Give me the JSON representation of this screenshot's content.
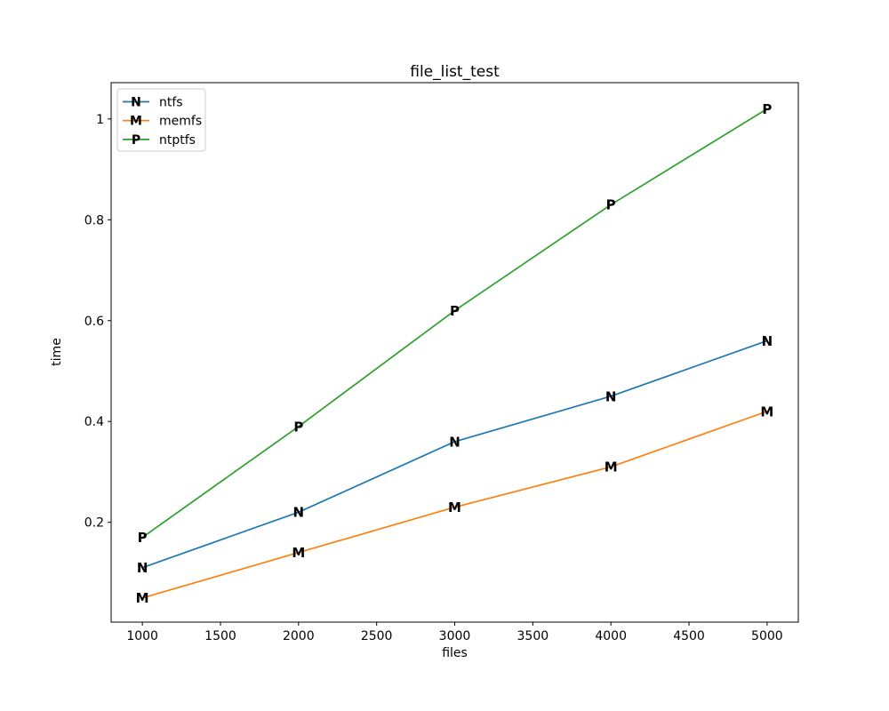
{
  "chart_data": {
    "type": "line",
    "title": "file_list_test",
    "xlabel": "files",
    "ylabel": "time",
    "x": [
      1000,
      2000,
      3000,
      4000,
      5000
    ],
    "series": [
      {
        "name": "ntfs",
        "marker": "N",
        "color": "#1f77b4",
        "values": [
          0.11,
          0.22,
          0.36,
          0.45,
          0.56
        ]
      },
      {
        "name": "memfs",
        "marker": "M",
        "color": "#ff7f0e",
        "values": [
          0.05,
          0.14,
          0.23,
          0.31,
          0.42
        ]
      },
      {
        "name": "ntptfs",
        "marker": "P",
        "color": "#2ca02c",
        "values": [
          0.17,
          0.39,
          0.62,
          0.83,
          1.02
        ]
      }
    ],
    "xticks": [
      1000,
      1500,
      2000,
      2500,
      3000,
      3500,
      4000,
      4500,
      5000
    ],
    "yticks": [
      0.2,
      0.4,
      0.6,
      0.8,
      1.0
    ],
    "xlim": [
      800,
      5200
    ],
    "ylim": [
      0.002,
      1.072
    ],
    "grid": false,
    "legend_position": "upper left",
    "colors": {
      "spine": "#000000",
      "text": "#000000",
      "legend_border": "#cccccc",
      "legend_bg": "#ffffff",
      "background": "#ffffff"
    }
  }
}
